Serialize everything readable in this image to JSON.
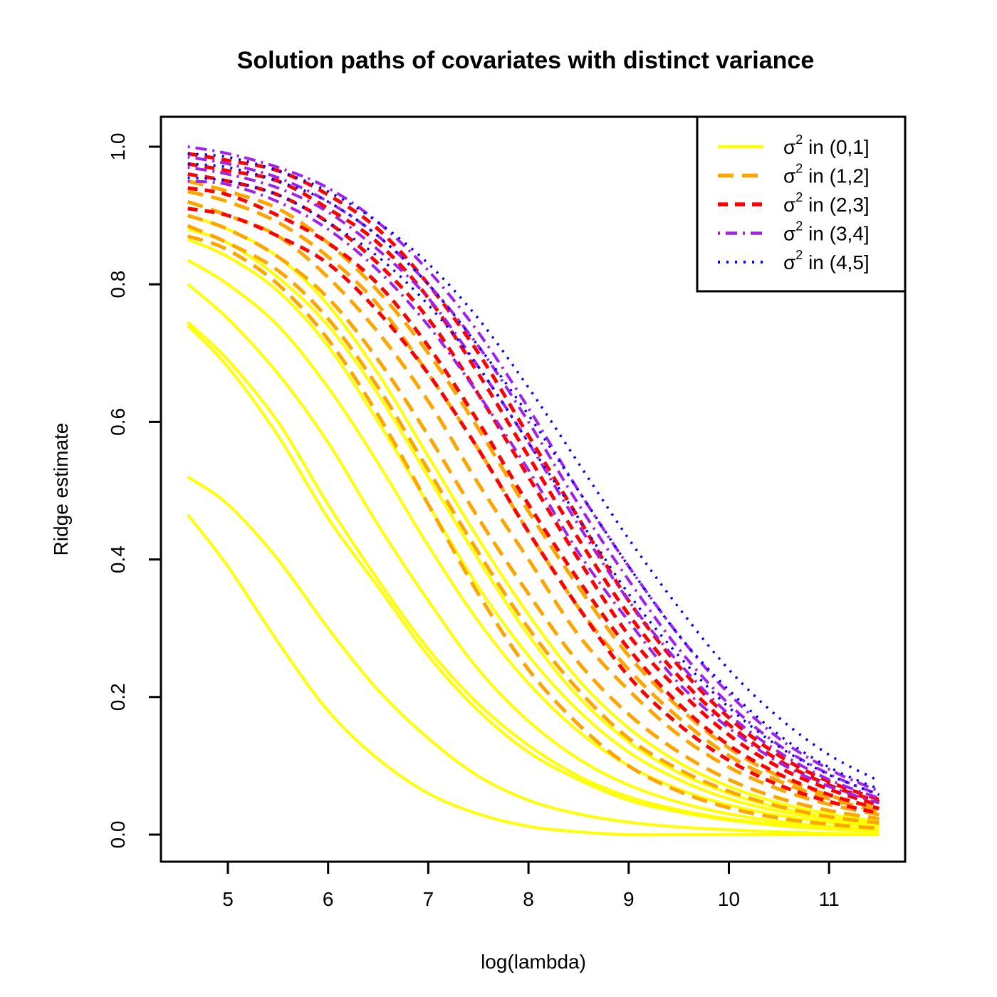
{
  "chart_data": {
    "type": "line",
    "title": "Solution paths of covariates with distinct variance",
    "xlabel": "log(lambda)",
    "ylabel": "Ridge estimate",
    "xlim": [
      4.6,
      11.5
    ],
    "ylim": [
      0.0,
      1.0
    ],
    "x_ticks": [
      "5",
      "6",
      "7",
      "8",
      "9",
      "10",
      "11"
    ],
    "y_ticks": [
      "0.0",
      "0.2",
      "0.4",
      "0.6",
      "0.8",
      "1.0"
    ],
    "legend_position": "top-right",
    "legend": [
      {
        "sym": "σ",
        "sup": "2",
        "rest": " in (0,1]",
        "color": "#FFFF00",
        "dash": "solid"
      },
      {
        "sym": "σ",
        "sup": "2",
        "rest": " in (1,2]",
        "color": "#FFA500",
        "dash": "dashed"
      },
      {
        "sym": "σ",
        "sup": "2",
        "rest": " in (2,3]",
        "color": "#FF0000",
        "dash": "short-dashed"
      },
      {
        "sym": "σ",
        "sup": "2",
        "rest": " in (3,4]",
        "color": "#A020F0",
        "dash": "dot-dash"
      },
      {
        "sym": "σ",
        "sup": "2",
        "rest": " in (4,5]",
        "color": "#0000FF",
        "dash": "dotted"
      }
    ],
    "x": [
      4.6,
      5.0,
      5.5,
      6.0,
      6.5,
      7.0,
      7.5,
      8.0,
      8.5,
      9.0,
      9.5,
      10.0,
      10.5,
      11.0,
      11.5
    ],
    "series": [
      {
        "group": 0,
        "values": [
          0.465,
          0.39,
          0.28,
          0.18,
          0.11,
          0.06,
          0.03,
          0.012,
          0.004,
          0.0,
          0.0,
          0.0,
          0.0,
          0.0,
          0.0
        ]
      },
      {
        "group": 0,
        "values": [
          0.52,
          0.48,
          0.4,
          0.3,
          0.21,
          0.14,
          0.085,
          0.05,
          0.03,
          0.018,
          0.011,
          0.007,
          0.004,
          0.002,
          0.001
        ]
      },
      {
        "group": 0,
        "values": [
          0.74,
          0.68,
          0.58,
          0.46,
          0.36,
          0.26,
          0.18,
          0.12,
          0.08,
          0.05,
          0.033,
          0.021,
          0.013,
          0.008,
          0.005
        ]
      },
      {
        "group": 0,
        "values": [
          0.745,
          0.69,
          0.6,
          0.48,
          0.37,
          0.27,
          0.19,
          0.13,
          0.085,
          0.055,
          0.036,
          0.023,
          0.015,
          0.01,
          0.006
        ]
      },
      {
        "group": 0,
        "values": [
          0.8,
          0.75,
          0.67,
          0.57,
          0.45,
          0.34,
          0.24,
          0.165,
          0.11,
          0.072,
          0.047,
          0.03,
          0.019,
          0.012,
          0.008
        ]
      },
      {
        "group": 0,
        "values": [
          0.835,
          0.8,
          0.74,
          0.65,
          0.54,
          0.42,
          0.31,
          0.22,
          0.15,
          0.1,
          0.066,
          0.043,
          0.028,
          0.018,
          0.012
        ]
      },
      {
        "group": 0,
        "values": [
          0.865,
          0.84,
          0.79,
          0.71,
          0.6,
          0.48,
          0.36,
          0.26,
          0.18,
          0.12,
          0.08,
          0.052,
          0.034,
          0.022,
          0.014
        ]
      },
      {
        "group": 0,
        "values": [
          0.88,
          0.86,
          0.81,
          0.74,
          0.64,
          0.52,
          0.4,
          0.29,
          0.2,
          0.135,
          0.09,
          0.06,
          0.039,
          0.025,
          0.016
        ]
      },
      {
        "group": 0,
        "values": [
          0.9,
          0.88,
          0.84,
          0.77,
          0.67,
          0.55,
          0.43,
          0.32,
          0.225,
          0.155,
          0.105,
          0.07,
          0.046,
          0.03,
          0.019
        ]
      },
      {
        "group": 1,
        "values": [
          0.87,
          0.85,
          0.8,
          0.72,
          0.61,
          0.48,
          0.35,
          0.24,
          0.16,
          0.1,
          0.063,
          0.039,
          0.024,
          0.015,
          0.009
        ]
      },
      {
        "group": 1,
        "values": [
          0.885,
          0.86,
          0.82,
          0.75,
          0.65,
          0.53,
          0.41,
          0.3,
          0.21,
          0.14,
          0.095,
          0.063,
          0.041,
          0.026,
          0.017
        ]
      },
      {
        "group": 1,
        "values": [
          0.9,
          0.88,
          0.84,
          0.78,
          0.69,
          0.58,
          0.46,
          0.35,
          0.25,
          0.175,
          0.12,
          0.08,
          0.053,
          0.035,
          0.023
        ]
      },
      {
        "group": 1,
        "values": [
          0.92,
          0.9,
          0.87,
          0.81,
          0.73,
          0.63,
          0.51,
          0.4,
          0.29,
          0.21,
          0.145,
          0.098,
          0.066,
          0.044,
          0.029
        ]
      },
      {
        "group": 1,
        "values": [
          0.935,
          0.92,
          0.89,
          0.84,
          0.77,
          0.67,
          0.56,
          0.44,
          0.33,
          0.24,
          0.17,
          0.115,
          0.078,
          0.052,
          0.034
        ]
      },
      {
        "group": 1,
        "values": [
          0.95,
          0.935,
          0.91,
          0.86,
          0.79,
          0.7,
          0.59,
          0.47,
          0.36,
          0.26,
          0.185,
          0.126,
          0.085,
          0.057,
          0.038
        ]
      },
      {
        "group": 2,
        "values": [
          0.91,
          0.9,
          0.87,
          0.83,
          0.76,
          0.67,
          0.56,
          0.44,
          0.33,
          0.23,
          0.16,
          0.108,
          0.072,
          0.048,
          0.031
        ]
      },
      {
        "group": 2,
        "values": [
          0.94,
          0.93,
          0.9,
          0.86,
          0.8,
          0.71,
          0.6,
          0.48,
          0.37,
          0.27,
          0.19,
          0.13,
          0.088,
          0.058,
          0.038
        ]
      },
      {
        "group": 2,
        "values": [
          0.96,
          0.95,
          0.93,
          0.89,
          0.83,
          0.75,
          0.64,
          0.52,
          0.4,
          0.29,
          0.21,
          0.145,
          0.098,
          0.066,
          0.043
        ]
      },
      {
        "group": 2,
        "values": [
          0.975,
          0.965,
          0.95,
          0.91,
          0.86,
          0.78,
          0.67,
          0.55,
          0.43,
          0.32,
          0.23,
          0.16,
          0.108,
          0.072,
          0.048
        ]
      },
      {
        "group": 2,
        "values": [
          0.99,
          0.98,
          0.965,
          0.93,
          0.88,
          0.8,
          0.7,
          0.58,
          0.46,
          0.34,
          0.245,
          0.17,
          0.115,
          0.077,
          0.051
        ]
      },
      {
        "group": 3,
        "values": [
          0.95,
          0.945,
          0.92,
          0.88,
          0.82,
          0.74,
          0.64,
          0.53,
          0.41,
          0.31,
          0.22,
          0.155,
          0.105,
          0.07,
          0.046
        ]
      },
      {
        "group": 3,
        "values": [
          0.97,
          0.96,
          0.94,
          0.905,
          0.85,
          0.78,
          0.68,
          0.57,
          0.45,
          0.34,
          0.25,
          0.175,
          0.12,
          0.08,
          0.053
        ]
      },
      {
        "group": 3,
        "values": [
          0.985,
          0.975,
          0.955,
          0.92,
          0.87,
          0.8,
          0.71,
          0.6,
          0.48,
          0.37,
          0.27,
          0.19,
          0.13,
          0.088,
          0.058
        ]
      },
      {
        "group": 3,
        "values": [
          1.0,
          0.99,
          0.97,
          0.94,
          0.89,
          0.82,
          0.73,
          0.62,
          0.5,
          0.39,
          0.29,
          0.205,
          0.14,
          0.095,
          0.063
        ]
      },
      {
        "group": 4,
        "values": [
          0.955,
          0.95,
          0.93,
          0.89,
          0.84,
          0.77,
          0.68,
          0.57,
          0.46,
          0.35,
          0.26,
          0.185,
          0.128,
          0.087,
          0.058
        ]
      },
      {
        "group": 4,
        "values": [
          0.975,
          0.97,
          0.95,
          0.92,
          0.87,
          0.8,
          0.71,
          0.61,
          0.5,
          0.39,
          0.29,
          0.21,
          0.145,
          0.098,
          0.066
        ]
      },
      {
        "group": 4,
        "values": [
          0.99,
          0.985,
          0.965,
          0.935,
          0.89,
          0.83,
          0.75,
          0.65,
          0.54,
          0.43,
          0.33,
          0.24,
          0.17,
          0.116,
          0.078
        ]
      }
    ]
  }
}
